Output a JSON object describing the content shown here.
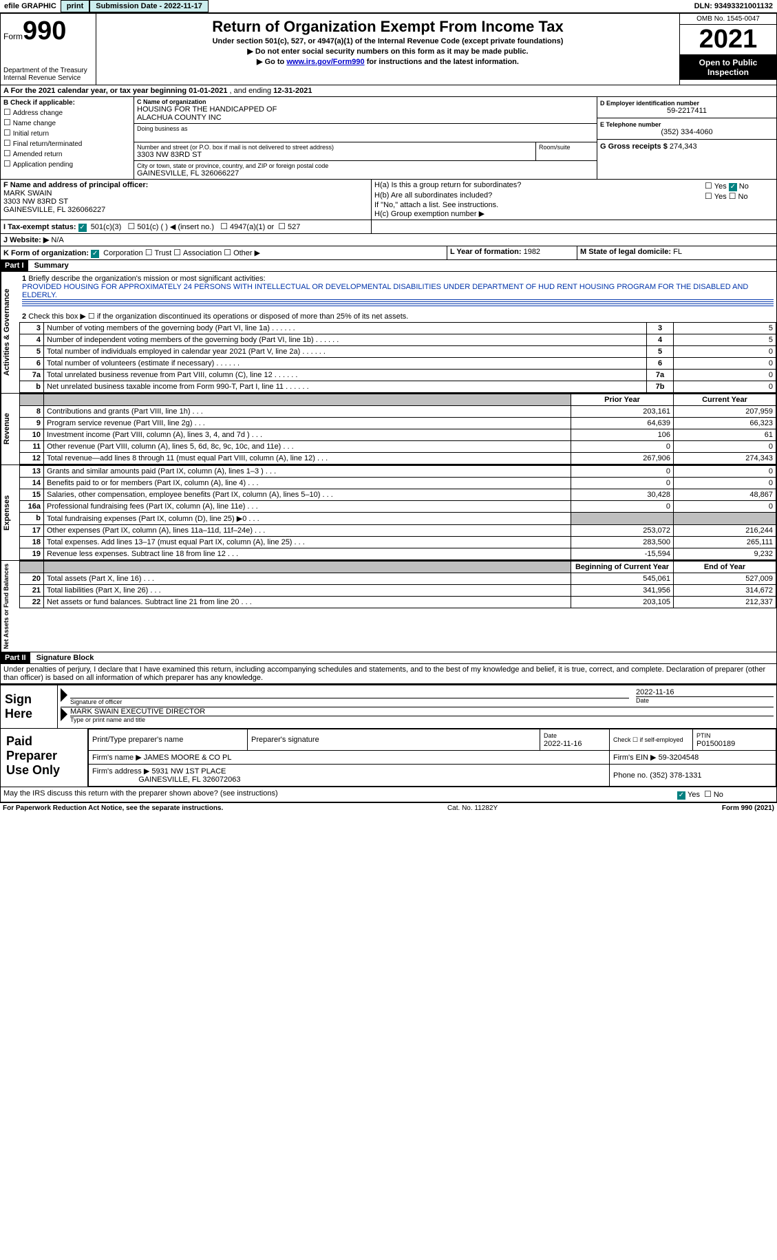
{
  "topbar": {
    "efile": "efile GRAPHIC",
    "print": "print",
    "submission_label": "Submission Date - 2022-11-17",
    "dln": "DLN: 93493321001132"
  },
  "header": {
    "form_label": "Form",
    "form_num": "990",
    "title": "Return of Organization Exempt From Income Tax",
    "subtitle1": "Under section 501(c), 527, or 4947(a)(1) of the Internal Revenue Code (except private foundations)",
    "subtitle2": "▶ Do not enter social security numbers on this form as it may be made public.",
    "subtitle3_prefix": "▶ Go to ",
    "subtitle3_link": "www.irs.gov/Form990",
    "subtitle3_suffix": " for instructions and the latest information.",
    "dept": "Department of the Treasury\nInternal Revenue Service",
    "omb": "OMB No. 1545-0047",
    "year": "2021",
    "open": "Open to Public Inspection"
  },
  "period": {
    "text": "A For the 2021 calendar year, or tax year beginning ",
    "begin": "01-01-2021",
    "mid": " , and ending ",
    "end": "12-31-2021"
  },
  "sectionB": {
    "label": "B Check if applicable:",
    "items": [
      "Address change",
      "Name change",
      "Initial return",
      "Final return/terminated",
      "Amended return",
      "Application pending"
    ]
  },
  "sectionC": {
    "label": "C Name of organization",
    "org_line1": "HOUSING FOR THE HANDICAPPED OF",
    "org_line2": "ALACHUA COUNTY INC",
    "dba_label": "Doing business as",
    "addr_label": "Number and street (or P.O. box if mail is not delivered to street address)",
    "room_label": "Room/suite",
    "addr": "3303 NW 83RD ST",
    "city_label": "City or town, state or province, country, and ZIP or foreign postal code",
    "city": "GAINESVILLE, FL  326066227"
  },
  "sectionD": {
    "label": "D Employer identification number",
    "value": "59-2217411"
  },
  "sectionE": {
    "label": "E Telephone number",
    "value": "(352) 334-4060"
  },
  "sectionG": {
    "label": "G Gross receipts $",
    "value": "274,343"
  },
  "sectionF": {
    "label": "F Name and address of principal officer:",
    "name": "MARK SWAIN",
    "addr1": "3303 NW 83RD ST",
    "addr2": "GAINESVILLE, FL  326066227"
  },
  "sectionH": {
    "a_label": "H(a)  Is this a group return for subordinates?",
    "b_label": "H(b)  Are all subordinates included?",
    "b_note": "If \"No,\" attach a list. See instructions.",
    "c_label": "H(c)  Group exemption number ▶",
    "yes": "Yes",
    "no": "No"
  },
  "sectionI": {
    "label": "I  Tax-exempt status:",
    "opt1": "501(c)(3)",
    "opt2": "501(c) (  ) ◀ (insert no.)",
    "opt3": "4947(a)(1) or",
    "opt4": "527"
  },
  "sectionJ": {
    "label": "J  Website: ▶",
    "value": "N/A"
  },
  "sectionK": {
    "label": "K Form of organization:",
    "opts": [
      "Corporation",
      "Trust",
      "Association",
      "Other ▶"
    ]
  },
  "sectionL": {
    "label": "L Year of formation:",
    "value": "1982"
  },
  "sectionM": {
    "label": "M State of legal domicile:",
    "value": "FL"
  },
  "part1": {
    "header": "Part I",
    "title": "Summary",
    "line1_label": "Briefly describe the organization's mission or most significant activities:",
    "mission": "PROVIDED HOUSING FOR APPROXIMATELY 24 PERSONS WITH INTELLECTUAL OR DEVELOPMENTAL DISABILITIES UNDER DEPARTMENT OF HUD RENT HOUSING PROGRAM FOR THE DISABLED AND ELDERLY.",
    "line2": "Check this box ▶ ☐ if the organization discontinued its operations or disposed of more than 25% of its net assets.",
    "vlabels": {
      "gov": "Activities & Governance",
      "rev": "Revenue",
      "exp": "Expenses",
      "net": "Net Assets or Fund Balances"
    },
    "lines_gov": [
      {
        "n": "3",
        "text": "Number of voting members of the governing body (Part VI, line 1a)",
        "box": "3",
        "val": "5"
      },
      {
        "n": "4",
        "text": "Number of independent voting members of the governing body (Part VI, line 1b)",
        "box": "4",
        "val": "5"
      },
      {
        "n": "5",
        "text": "Total number of individuals employed in calendar year 2021 (Part V, line 2a)",
        "box": "5",
        "val": "0"
      },
      {
        "n": "6",
        "text": "Total number of volunteers (estimate if necessary)",
        "box": "6",
        "val": "0"
      },
      {
        "n": "7a",
        "text": "Total unrelated business revenue from Part VIII, column (C), line 12",
        "box": "7a",
        "val": "0"
      },
      {
        "n": "b",
        "text": "Net unrelated business taxable income from Form 990-T, Part I, line 11",
        "box": "7b",
        "val": "0"
      }
    ],
    "col_headers": {
      "prior": "Prior Year",
      "current": "Current Year"
    },
    "lines_rev": [
      {
        "n": "8",
        "text": "Contributions and grants (Part VIII, line 1h)",
        "py": "203,161",
        "cy": "207,959"
      },
      {
        "n": "9",
        "text": "Program service revenue (Part VIII, line 2g)",
        "py": "64,639",
        "cy": "66,323"
      },
      {
        "n": "10",
        "text": "Investment income (Part VIII, column (A), lines 3, 4, and 7d )",
        "py": "106",
        "cy": "61"
      },
      {
        "n": "11",
        "text": "Other revenue (Part VIII, column (A), lines 5, 6d, 8c, 9c, 10c, and 11e)",
        "py": "0",
        "cy": "0"
      },
      {
        "n": "12",
        "text": "Total revenue—add lines 8 through 11 (must equal Part VIII, column (A), line 12)",
        "py": "267,906",
        "cy": "274,343"
      }
    ],
    "lines_exp": [
      {
        "n": "13",
        "text": "Grants and similar amounts paid (Part IX, column (A), lines 1–3 )",
        "py": "0",
        "cy": "0"
      },
      {
        "n": "14",
        "text": "Benefits paid to or for members (Part IX, column (A), line 4)",
        "py": "0",
        "cy": "0"
      },
      {
        "n": "15",
        "text": "Salaries, other compensation, employee benefits (Part IX, column (A), lines 5–10)",
        "py": "30,428",
        "cy": "48,867"
      },
      {
        "n": "16a",
        "text": "Professional fundraising fees (Part IX, column (A), line 11e)",
        "py": "0",
        "cy": "0"
      },
      {
        "n": "b",
        "text": "Total fundraising expenses (Part IX, column (D), line 25) ▶0",
        "py": "",
        "cy": "",
        "grey": true
      },
      {
        "n": "17",
        "text": "Other expenses (Part IX, column (A), lines 11a–11d, 11f–24e)",
        "py": "253,072",
        "cy": "216,244"
      },
      {
        "n": "18",
        "text": "Total expenses. Add lines 13–17 (must equal Part IX, column (A), line 25)",
        "py": "283,500",
        "cy": "265,111"
      },
      {
        "n": "19",
        "text": "Revenue less expenses. Subtract line 18 from line 12",
        "py": "-15,594",
        "cy": "9,232"
      }
    ],
    "net_headers": {
      "begin": "Beginning of Current Year",
      "end": "End of Year"
    },
    "lines_net": [
      {
        "n": "20",
        "text": "Total assets (Part X, line 16)",
        "py": "545,061",
        "cy": "527,009"
      },
      {
        "n": "21",
        "text": "Total liabilities (Part X, line 26)",
        "py": "341,956",
        "cy": "314,672"
      },
      {
        "n": "22",
        "text": "Net assets or fund balances. Subtract line 21 from line 20",
        "py": "203,105",
        "cy": "212,337"
      }
    ]
  },
  "part2": {
    "header": "Part II",
    "title": "Signature Block",
    "declaration": "Under penalties of perjury, I declare that I have examined this return, including accompanying schedules and statements, and to the best of my knowledge and belief, it is true, correct, and complete. Declaration of preparer (other than officer) is based on all information of which preparer has any knowledge.",
    "sign_here": "Sign Here",
    "sig_officer": "Signature of officer",
    "date": "Date",
    "sig_date": "2022-11-16",
    "name_title": "MARK SWAIN  EXECUTIVE DIRECTOR",
    "name_title_label": "Type or print name and title",
    "paid_label": "Paid Preparer Use Only",
    "prep_name_label": "Print/Type preparer's name",
    "prep_sig_label": "Preparer's signature",
    "prep_date_label": "Date",
    "prep_date": "2022-11-16",
    "check_self": "Check ☐ if self-employed",
    "ptin_label": "PTIN",
    "ptin": "P01500189",
    "firm_name_label": "Firm's name   ▶",
    "firm_name": "JAMES MOORE & CO PL",
    "firm_ein_label": "Firm's EIN ▶",
    "firm_ein": "59-3204548",
    "firm_addr_label": "Firm's address ▶",
    "firm_addr1": "5931 NW 1ST PLACE",
    "firm_addr2": "GAINESVILLE, FL  326072063",
    "phone_label": "Phone no.",
    "phone": "(352) 378-1331",
    "discuss": "May the IRS discuss this return with the preparer shown above? (see instructions)",
    "yes": "Yes",
    "no": "No"
  },
  "footer": {
    "left": "For Paperwork Reduction Act Notice, see the separate instructions.",
    "mid": "Cat. No. 11282Y",
    "right": "Form 990 (2021)"
  }
}
